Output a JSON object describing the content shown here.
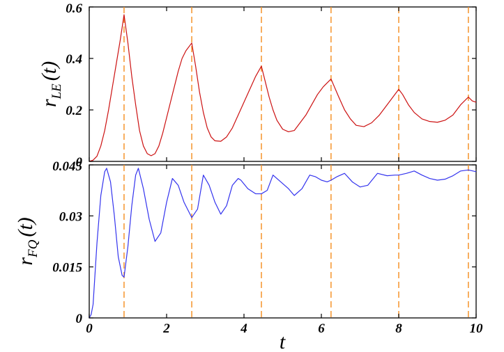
{
  "chart_data": [
    {
      "type": "line",
      "panel": "top",
      "ylabel": {
        "main": "r",
        "sub": "LE",
        "suffix": "(t)"
      },
      "xlim": [
        0,
        10
      ],
      "ylim": [
        0,
        0.6
      ],
      "xticks": [
        0,
        2,
        4,
        6,
        8,
        10
      ],
      "yticks": [
        0,
        0.2,
        0.4,
        0.6
      ],
      "ytick_labels": [
        "0",
        "0.2",
        "0.4",
        "0.6"
      ],
      "vlines": [
        0.9,
        2.65,
        4.45,
        6.25,
        8.0,
        9.8
      ],
      "vline_color": "#f5932a",
      "series": [
        {
          "color": "#cc1111",
          "x": [
            0,
            0.1,
            0.2,
            0.3,
            0.4,
            0.5,
            0.6,
            0.7,
            0.8,
            0.9,
            1.0,
            1.1,
            1.2,
            1.3,
            1.4,
            1.5,
            1.6,
            1.7,
            1.8,
            1.9,
            2.0,
            2.1,
            2.2,
            2.3,
            2.4,
            2.5,
            2.65,
            2.75,
            2.85,
            2.95,
            3.05,
            3.15,
            3.25,
            3.4,
            3.55,
            3.7,
            3.85,
            4.0,
            4.15,
            4.3,
            4.45,
            4.55,
            4.65,
            4.75,
            4.85,
            5.0,
            5.15,
            5.3,
            5.45,
            5.6,
            5.75,
            5.9,
            6.05,
            6.25,
            6.35,
            6.45,
            6.6,
            6.75,
            6.9,
            7.1,
            7.3,
            7.5,
            7.7,
            7.85,
            8.0,
            8.1,
            8.25,
            8.4,
            8.6,
            8.8,
            9.0,
            9.2,
            9.4,
            9.6,
            9.8,
            9.9,
            10.0
          ],
          "y": [
            0.0,
            0.005,
            0.02,
            0.06,
            0.12,
            0.2,
            0.29,
            0.38,
            0.47,
            0.57,
            0.46,
            0.33,
            0.22,
            0.12,
            0.06,
            0.03,
            0.022,
            0.03,
            0.06,
            0.11,
            0.17,
            0.23,
            0.29,
            0.35,
            0.4,
            0.43,
            0.46,
            0.37,
            0.27,
            0.19,
            0.13,
            0.095,
            0.08,
            0.078,
            0.095,
            0.13,
            0.18,
            0.23,
            0.28,
            0.33,
            0.37,
            0.31,
            0.25,
            0.2,
            0.16,
            0.125,
            0.115,
            0.12,
            0.15,
            0.18,
            0.22,
            0.26,
            0.29,
            0.32,
            0.285,
            0.25,
            0.2,
            0.165,
            0.14,
            0.135,
            0.15,
            0.18,
            0.22,
            0.25,
            0.28,
            0.26,
            0.22,
            0.19,
            0.165,
            0.155,
            0.152,
            0.16,
            0.18,
            0.22,
            0.25,
            0.235,
            0.23
          ]
        }
      ]
    },
    {
      "type": "line",
      "panel": "bottom",
      "xlabel": "t",
      "ylabel": {
        "main": "r",
        "sub": "FQ",
        "suffix": "(t)"
      },
      "xlim": [
        0,
        10
      ],
      "ylim": [
        0,
        0.045
      ],
      "xticks": [
        0,
        2,
        4,
        6,
        8,
        10
      ],
      "xtick_labels": [
        "0",
        "2",
        "4",
        "6",
        "8",
        "10"
      ],
      "yticks": [
        0,
        0.015,
        0.03,
        0.045
      ],
      "ytick_labels": [
        "0",
        "0.015",
        "0.03",
        "0.045"
      ],
      "vlines": [
        0.9,
        2.65,
        4.45,
        6.25,
        8.0,
        9.8
      ],
      "vline_color": "#f5932a",
      "series": [
        {
          "color": "#3333ee",
          "x": [
            0,
            0.05,
            0.1,
            0.2,
            0.3,
            0.4,
            0.45,
            0.55,
            0.65,
            0.75,
            0.85,
            0.9,
            1.0,
            1.1,
            1.2,
            1.27,
            1.4,
            1.55,
            1.7,
            1.85,
            2.0,
            2.15,
            2.3,
            2.45,
            2.65,
            2.8,
            2.95,
            3.1,
            3.25,
            3.4,
            3.55,
            3.7,
            3.85,
            3.92,
            4.1,
            4.3,
            4.45,
            4.6,
            4.75,
            4.95,
            5.15,
            5.3,
            5.5,
            5.7,
            5.85,
            6.0,
            6.15,
            6.25,
            6.4,
            6.6,
            6.8,
            7.0,
            7.2,
            7.45,
            7.7,
            7.9,
            8.0,
            8.2,
            8.4,
            8.6,
            8.8,
            9.0,
            9.2,
            9.4,
            9.6,
            9.8,
            10.0
          ],
          "y": [
            0.0,
            0.001,
            0.004,
            0.022,
            0.036,
            0.043,
            0.044,
            0.04,
            0.03,
            0.018,
            0.0125,
            0.012,
            0.021,
            0.033,
            0.042,
            0.044,
            0.038,
            0.029,
            0.0225,
            0.025,
            0.034,
            0.041,
            0.039,
            0.034,
            0.0295,
            0.032,
            0.042,
            0.039,
            0.034,
            0.0305,
            0.033,
            0.039,
            0.041,
            0.0405,
            0.038,
            0.0365,
            0.0365,
            0.0375,
            0.042,
            0.04,
            0.038,
            0.036,
            0.038,
            0.042,
            0.0415,
            0.0405,
            0.04,
            0.0405,
            0.0415,
            0.0425,
            0.04,
            0.0385,
            0.039,
            0.0425,
            0.0418,
            0.042,
            0.042,
            0.0425,
            0.0432,
            0.042,
            0.041,
            0.0405,
            0.0408,
            0.0418,
            0.0432,
            0.0435,
            0.043
          ]
        }
      ]
    }
  ]
}
